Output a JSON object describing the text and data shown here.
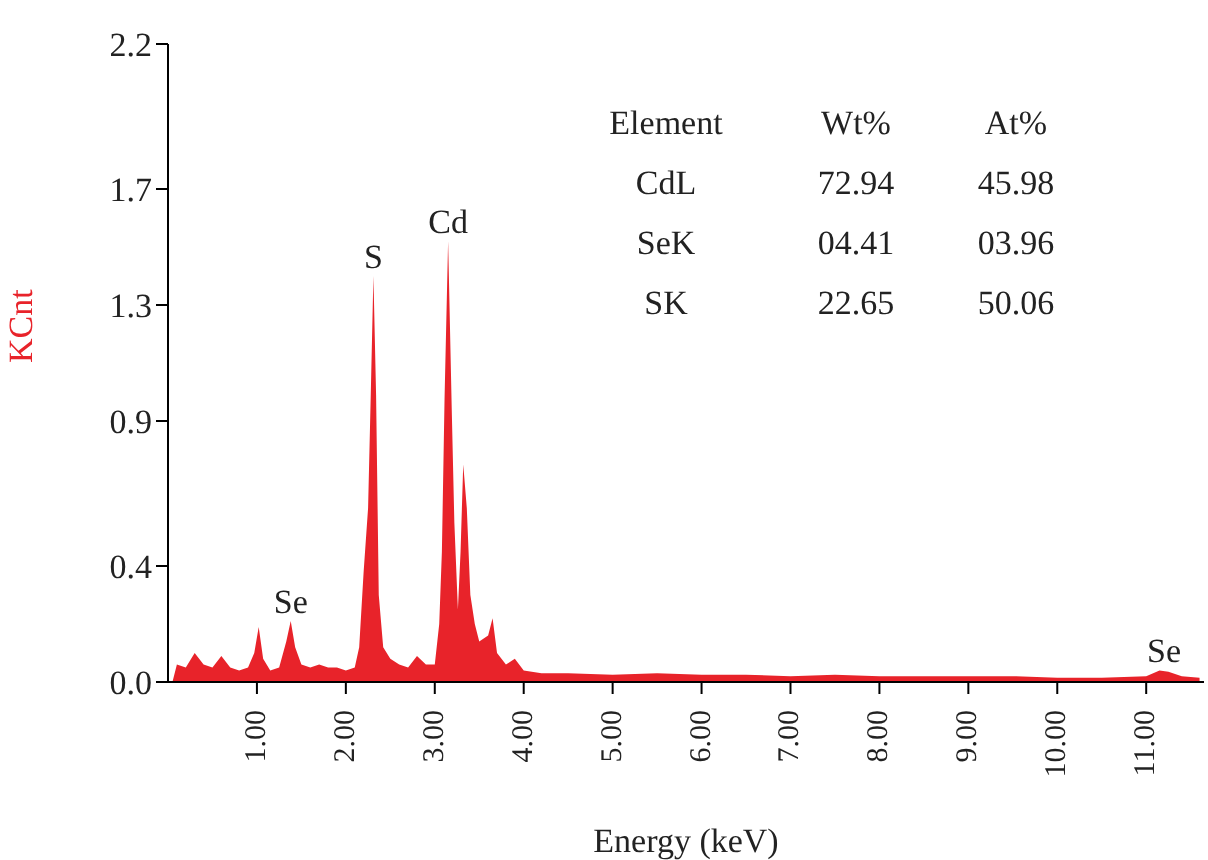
{
  "chart_data": {
    "type": "area",
    "xlabel": "Energy (keV)",
    "ylabel": "KCnt",
    "x": [
      0.05,
      0.1,
      0.2,
      0.3,
      0.4,
      0.5,
      0.6,
      0.7,
      0.8,
      0.9,
      0.97,
      1.02,
      1.07,
      1.15,
      1.25,
      1.33,
      1.38,
      1.43,
      1.5,
      1.6,
      1.7,
      1.8,
      1.9,
      2.0,
      2.1,
      2.15,
      2.2,
      2.25,
      2.28,
      2.31,
      2.34,
      2.37,
      2.42,
      2.5,
      2.6,
      2.7,
      2.8,
      2.9,
      3.0,
      3.05,
      3.08,
      3.11,
      3.15,
      3.19,
      3.22,
      3.26,
      3.29,
      3.32,
      3.36,
      3.4,
      3.45,
      3.5,
      3.6,
      3.65,
      3.7,
      3.8,
      3.9,
      4.0,
      4.2,
      4.5,
      5.0,
      5.5,
      6.0,
      6.5,
      7.0,
      7.5,
      8.0,
      8.5,
      9.0,
      9.5,
      10.0,
      10.5,
      11.0,
      11.15,
      11.25,
      11.4,
      11.6
    ],
    "series": [
      {
        "color": "#e8232a",
        "values": [
          0.0,
          0.06,
          0.05,
          0.1,
          0.06,
          0.05,
          0.09,
          0.05,
          0.04,
          0.05,
          0.1,
          0.19,
          0.08,
          0.04,
          0.05,
          0.14,
          0.21,
          0.12,
          0.06,
          0.05,
          0.06,
          0.05,
          0.05,
          0.04,
          0.05,
          0.12,
          0.38,
          0.6,
          0.99,
          1.4,
          0.99,
          0.3,
          0.12,
          0.08,
          0.06,
          0.05,
          0.09,
          0.06,
          0.06,
          0.2,
          0.45,
          0.98,
          1.52,
          0.95,
          0.55,
          0.25,
          0.45,
          0.75,
          0.6,
          0.3,
          0.2,
          0.14,
          0.16,
          0.22,
          0.1,
          0.06,
          0.08,
          0.04,
          0.03,
          0.03,
          0.025,
          0.03,
          0.025,
          0.025,
          0.02,
          0.025,
          0.02,
          0.02,
          0.02,
          0.02,
          0.015,
          0.015,
          0.02,
          0.04,
          0.035,
          0.02,
          0.015
        ]
      }
    ],
    "xlim": [
      0,
      11.65
    ],
    "xticks": [
      {
        "value": 1,
        "label": "1.00"
      },
      {
        "value": 2,
        "label": "2.00"
      },
      {
        "value": 3,
        "label": "3.00"
      },
      {
        "value": 4,
        "label": "4.00"
      },
      {
        "value": 5,
        "label": "5.00"
      },
      {
        "value": 6,
        "label": "6.00"
      },
      {
        "value": 7,
        "label": "7.00"
      },
      {
        "value": 8,
        "label": "8.00"
      },
      {
        "value": 9,
        "label": "9.00"
      },
      {
        "value": 10,
        "label": "10.00"
      },
      {
        "value": 11,
        "label": "11.00"
      }
    ],
    "ylim": [
      0,
      2.2
    ],
    "yticks": [
      {
        "value": 0,
        "label": "0.0"
      },
      0.4,
      0.9,
      1.3,
      1.7,
      2.2
    ],
    "annotations": [
      {
        "text": "Se",
        "x": 1.38,
        "y": 0.21
      },
      {
        "text": "S",
        "x": 2.31,
        "y": 1.4
      },
      {
        "text": "Cd",
        "x": 3.15,
        "y": 1.52
      },
      {
        "text": "Se",
        "x": 11.2,
        "y": 0.04
      },
      "Element",
      "Wt%",
      "At%",
      "CdL",
      "72.94",
      "45.98",
      "SeK",
      "04.41",
      "03.96",
      "SK",
      "22.65",
      "50.06"
    ],
    "grid": false,
    "legend": false
  }
}
